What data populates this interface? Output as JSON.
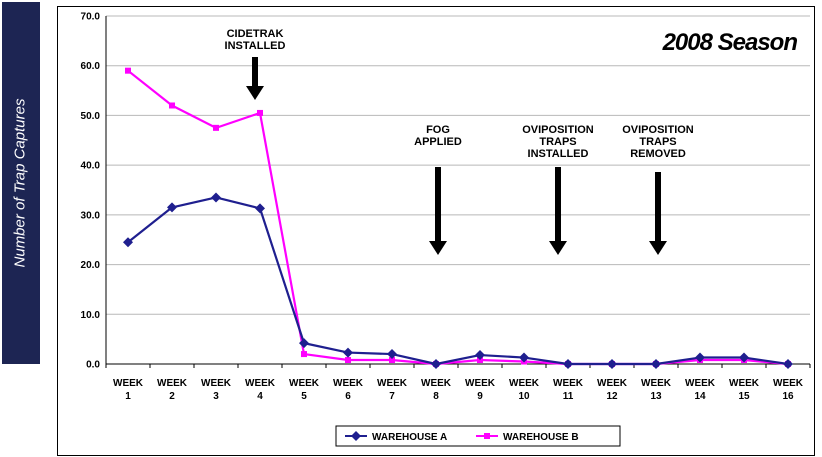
{
  "y_axis_label": "Number of Trap Captures",
  "chart_data": {
    "type": "line",
    "title": "2008 Season",
    "xlabel": "",
    "ylabel": "Number of Trap Captures",
    "categories": [
      "WEEK 1",
      "WEEK 2",
      "WEEK 3",
      "WEEK 4",
      "WEEK 5",
      "WEEK 6",
      "WEEK 7",
      "WEEK 8",
      "WEEK 9",
      "WEEK 10",
      "WEEK 11",
      "WEEK 12",
      "WEEK 13",
      "WEEK 14",
      "WEEK 15",
      "WEEK 16"
    ],
    "ylim": [
      0,
      70
    ],
    "yticks": [
      "0.0",
      "10.0",
      "20.0",
      "30.0",
      "40.0",
      "50.0",
      "60.0",
      "70.0"
    ],
    "grid": true,
    "legend_position": "bottom",
    "series": [
      {
        "name": "WAREHOUSE A",
        "color": "#1f1f8f",
        "marker": "diamond",
        "values": [
          24.5,
          31.5,
          33.5,
          31.3,
          4.2,
          2.3,
          2.0,
          0.0,
          1.8,
          1.3,
          0.0,
          0.0,
          0.0,
          1.3,
          1.3,
          0.0
        ]
      },
      {
        "name": "WAREHOUSE B",
        "color": "#ff00ff",
        "marker": "square",
        "values": [
          59.0,
          52.0,
          47.5,
          50.5,
          2.0,
          0.8,
          0.8,
          0.0,
          0.8,
          0.5,
          0.0,
          0.0,
          0.0,
          0.8,
          0.8,
          0.0
        ]
      }
    ],
    "annotations": [
      {
        "lines": [
          "CIDETRAK",
          "INSTALLED"
        ],
        "week": 4
      },
      {
        "lines": [
          "FOG",
          "APPLIED"
        ],
        "week": 8
      },
      {
        "lines": [
          "OVIPOSITION",
          "TRAPS",
          "INSTALLED"
        ],
        "week": 11
      },
      {
        "lines": [
          "OVIPOSITION",
          "TRAPS",
          "REMOVED"
        ],
        "week": 13
      }
    ]
  }
}
